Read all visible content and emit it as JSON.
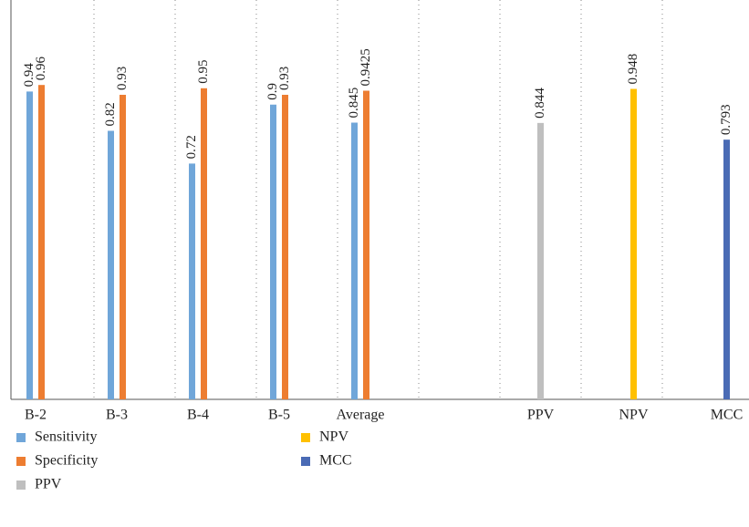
{
  "chart_data": {
    "type": "bar",
    "categories": [
      "B-2",
      "B-3",
      "B-4",
      "B-5",
      "Average",
      null,
      "PPV",
      "NPV",
      "MCC"
    ],
    "series": [
      {
        "name": "Sensitivity",
        "color": "#70a6d9",
        "values": [
          0.94,
          0.82,
          0.72,
          0.9,
          0.845,
          null,
          null,
          null,
          null
        ]
      },
      {
        "name": "Specificity",
        "color": "#ed7d31",
        "values": [
          0.96,
          0.93,
          0.95,
          0.93,
          0.9425,
          null,
          null,
          null,
          null
        ]
      },
      {
        "name": "PPV",
        "color": "#bfbfbf",
        "values": [
          null,
          null,
          null,
          null,
          null,
          null,
          0.844,
          null,
          null
        ]
      },
      {
        "name": "NPV",
        "color": "#ffc000",
        "values": [
          null,
          null,
          null,
          null,
          null,
          null,
          null,
          0.948,
          null
        ]
      },
      {
        "name": "MCC",
        "color": "#4a6bb5",
        "values": [
          null,
          null,
          null,
          null,
          null,
          null,
          null,
          null,
          0.793
        ]
      }
    ],
    "ylim": [
      0,
      1.2
    ]
  }
}
